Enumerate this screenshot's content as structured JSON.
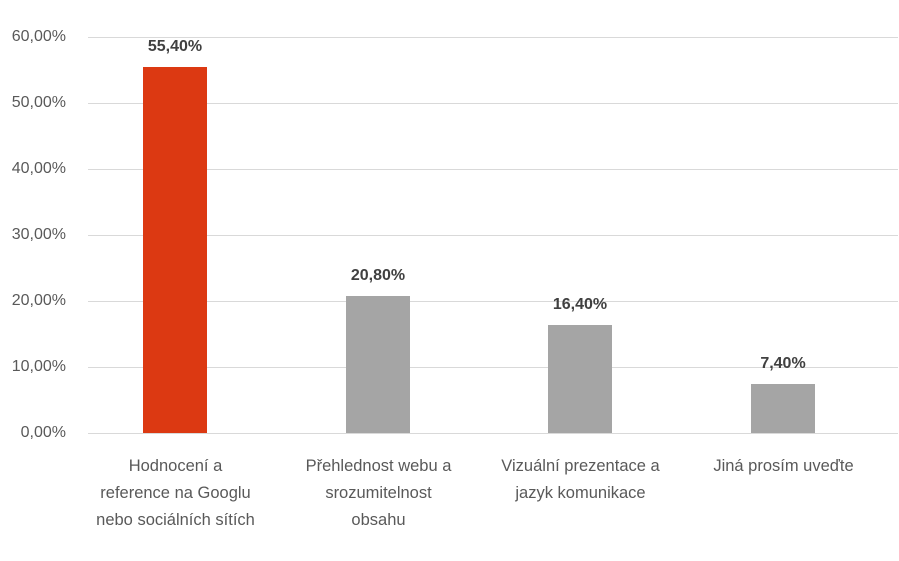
{
  "chart_data": {
    "type": "bar",
    "title": "",
    "xlabel": "",
    "ylabel": "",
    "categories": [
      "Hodnocení a reference na Googlu nebo sociálních sítích",
      "Přehlednost webu a srozumitelnost obsahu",
      "Vizuální prezentace a jazyk komunikace",
      "Jiná prosím uveďte"
    ],
    "category_lines": [
      [
        "Hodnocení a",
        "reference na Googlu",
        "nebo sociálních sítích"
      ],
      [
        "Přehlednost webu a",
        "srozumitelnost",
        "obsahu"
      ],
      [
        "Vizuální prezentace a",
        "jazyk komunikace"
      ],
      [
        "Jiná prosím uveďte"
      ]
    ],
    "values": [
      55.4,
      20.8,
      16.4,
      7.4
    ],
    "value_labels": [
      "55,40%",
      "20,80%",
      "16,40%",
      "7,40%"
    ],
    "bar_colors": [
      "#dc3912",
      "#a5a5a5",
      "#a5a5a5",
      "#a5a5a5"
    ],
    "ylim": [
      0,
      60
    ],
    "yticks": [
      0,
      10,
      20,
      30,
      40,
      50,
      60
    ],
    "ytick_labels": [
      "0,00%",
      "10,00%",
      "20,00%",
      "30,00%",
      "40,00%",
      "50,00%",
      "60,00%"
    ],
    "grid": true,
    "legend": null
  }
}
